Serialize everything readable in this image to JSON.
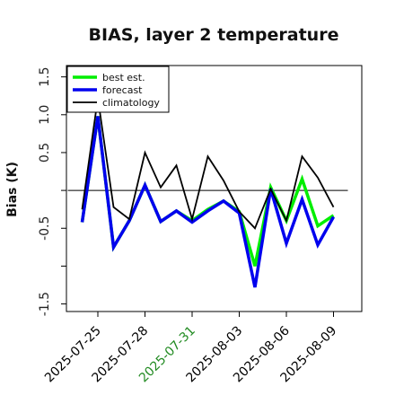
{
  "chart_data": {
    "type": "line",
    "title": "BIAS, layer 2 temperature",
    "xlabel": "",
    "ylabel": "Bias (K)",
    "ylim": [
      -1.6,
      1.65
    ],
    "xlim": [
      -1.0,
      17.8
    ],
    "x_tick_positions": [
      1,
      4,
      7,
      10,
      13,
      16
    ],
    "x_tick_labels": [
      "2025-07-25",
      "2025-07-28",
      "2025-07-31",
      "2025-08-03",
      "2025-08-06",
      "2025-08-09"
    ],
    "x_tick_colors": [
      "#000000",
      "#000000",
      "#228b22",
      "#000000",
      "#000000",
      "#000000"
    ],
    "y_ticks": [
      -1.5,
      -1.0,
      -0.5,
      0.0,
      0.5,
      1.0,
      1.5
    ],
    "y_tick_labels": [
      "-1.5",
      "",
      "-0.5",
      "",
      "0.5",
      "1.0",
      "1.5"
    ],
    "reference_line": 0.0,
    "x": [
      "2025-07-24",
      "2025-07-25",
      "2025-07-26",
      "2025-07-27",
      "2025-07-28",
      "2025-07-29",
      "2025-07-30",
      "2025-07-31",
      "2025-08-01",
      "2025-08-02",
      "2025-08-03",
      "2025-08-04",
      "2025-08-05",
      "2025-08-06",
      "2025-08-07",
      "2025-08-08",
      "2025-08-09"
    ],
    "series": [
      {
        "name": "best est.",
        "color": "#00ee00",
        "width": 3.5,
        "values": [
          -0.42,
          0.98,
          -0.75,
          -0.4,
          0.07,
          -0.41,
          -0.27,
          -0.4,
          -0.25,
          -0.14,
          -0.28,
          -1.0,
          0.04,
          -0.4,
          0.15,
          -0.47,
          -0.33
        ]
      },
      {
        "name": "forecast",
        "color": "#0000ee",
        "width": 3.5,
        "values": [
          -0.42,
          0.98,
          -0.75,
          -0.4,
          0.07,
          -0.41,
          -0.27,
          -0.42,
          -0.27,
          -0.14,
          -0.3,
          -1.28,
          0.02,
          -0.7,
          -0.12,
          -0.72,
          -0.35
        ]
      },
      {
        "name": "climatology",
        "color": "#000000",
        "width": 1.8,
        "values": [
          -0.25,
          1.22,
          -0.22,
          -0.38,
          0.5,
          0.04,
          0.33,
          -0.38,
          0.45,
          0.13,
          -0.28,
          -0.5,
          0.02,
          -0.4,
          0.45,
          0.17,
          -0.22
        ]
      }
    ],
    "legend": "top-left",
    "grid": false
  }
}
